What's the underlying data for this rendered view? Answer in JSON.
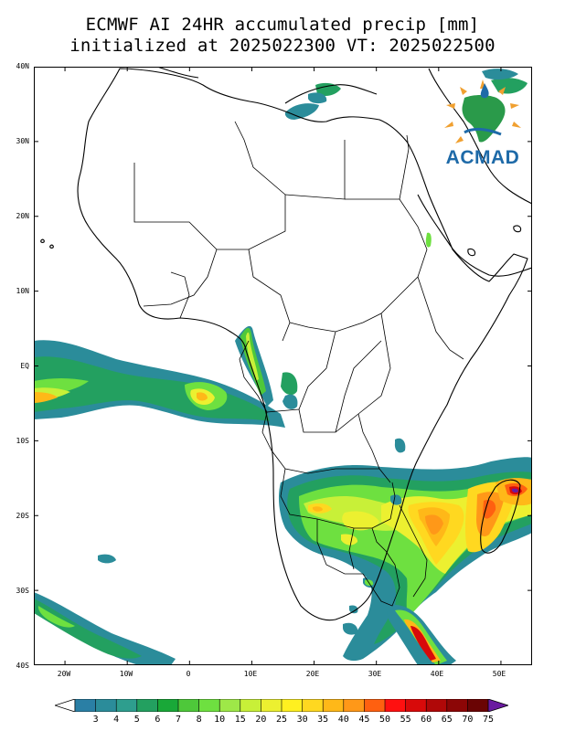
{
  "title": {
    "line1": "ECMWF AI 24HR accumulated precip [mm]",
    "line2": "initialized at 2025022300 VT: 2025022500"
  },
  "logo": {
    "text": "ACMAD"
  },
  "axes": {
    "lat_labels": [
      "40N",
      "30N",
      "20N",
      "10N",
      "EQ",
      "10S",
      "20S",
      "30S",
      "40S"
    ],
    "lon_labels": [
      "20W",
      "10W",
      "0",
      "10E",
      "20E",
      "30E",
      "40E",
      "50E"
    ],
    "lon_range": [
      -25,
      55
    ],
    "lat_range": [
      -40,
      40
    ]
  },
  "colorbar": {
    "levels": [
      "3",
      "4",
      "5",
      "6",
      "7",
      "8",
      "10",
      "15",
      "20",
      "25",
      "30",
      "35",
      "40",
      "45",
      "50",
      "55",
      "60",
      "65",
      "70",
      "75"
    ],
    "colors": [
      "#2a7fa5",
      "#2b8c9a",
      "#2e9e8e",
      "#23a060",
      "#19a838",
      "#4ec83a",
      "#6ee040",
      "#9ee848",
      "#c8f038",
      "#ecf030",
      "#fff020",
      "#ffd820",
      "#ffb818",
      "#ff9818",
      "#ff6010",
      "#ff1010",
      "#d80a0a",
      "#b00808",
      "#8c0606",
      "#6a0404",
      "#6a1aa0"
    ],
    "low_extend_color": "#ffffff",
    "high_extend_color": "#6a1aa0"
  },
  "colors": {
    "coast": "#000000",
    "background": "#ffffff"
  }
}
